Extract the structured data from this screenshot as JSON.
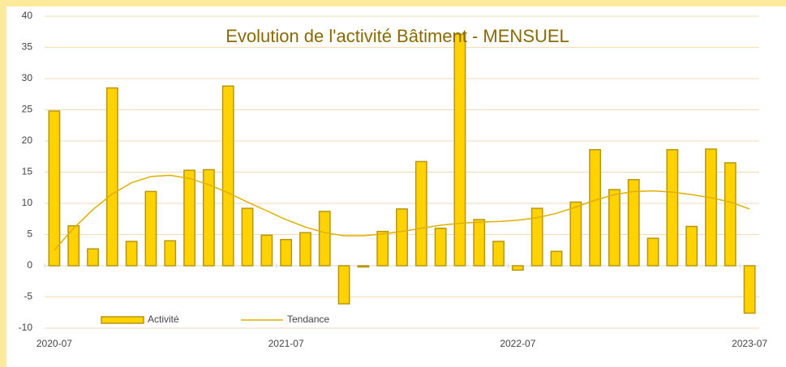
{
  "chart_data": {
    "type": "bar",
    "title": "Evolution de l'activité Bâtiment - MENSUEL",
    "categories": [
      "2020-07",
      null,
      null,
      null,
      null,
      null,
      null,
      null,
      null,
      null,
      null,
      null,
      "2021-07",
      null,
      null,
      null,
      null,
      null,
      null,
      null,
      null,
      null,
      null,
      null,
      "2022-07",
      null,
      null,
      null,
      null,
      null,
      null,
      null,
      null,
      null,
      null,
      null,
      "2023-07"
    ],
    "series": [
      {
        "name": "Activité",
        "type": "bar",
        "color": "#ffd200",
        "values": [
          24.8,
          6.4,
          2.7,
          28.5,
          3.9,
          11.9,
          4.0,
          15.3,
          15.4,
          28.8,
          9.2,
          4.9,
          4.2,
          5.3,
          8.7,
          -6.1,
          -0.2,
          5.5,
          9.1,
          16.7,
          6.0,
          37.1,
          7.4,
          3.9,
          -0.7,
          9.2,
          2.3,
          10.2,
          18.6,
          12.2,
          13.8,
          4.4,
          18.6,
          6.3,
          18.7,
          16.5,
          -7.6
        ]
      },
      {
        "name": "Tendance",
        "type": "line",
        "color": "#e0b000",
        "values": [
          2.5,
          6,
          9,
          11.5,
          13.3,
          14.3,
          14.5,
          14,
          13,
          11.7,
          10.2,
          8.8,
          7.4,
          6.2,
          5.3,
          4.8,
          4.8,
          5.1,
          5.5,
          6,
          6.5,
          6.8,
          7,
          7.1,
          7.3,
          7.7,
          8.4,
          9.4,
          10.5,
          11.4,
          11.9,
          12,
          11.8,
          11.4,
          10.9,
          10.2,
          9.1
        ]
      }
    ],
    "ylim": [
      -10,
      40
    ],
    "yticks": [
      -10,
      -5,
      0,
      5,
      10,
      15,
      20,
      25,
      30,
      35,
      40
    ],
    "grid": true,
    "legend": "bottom-left"
  }
}
